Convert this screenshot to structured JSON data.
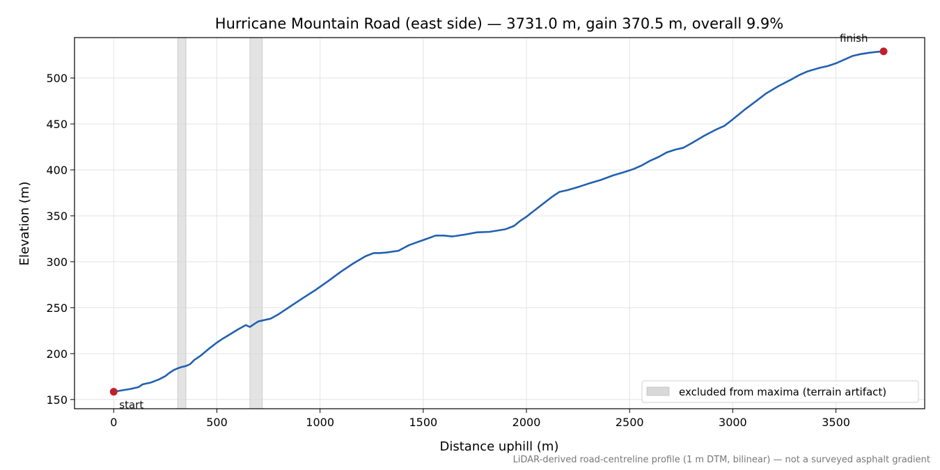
{
  "chart_data": {
    "type": "line",
    "title": "Hurricane Mountain Road (east side) — 3731.0 m, gain 370.5 m, overall 9.9%",
    "xlabel": "Distance uphill (m)",
    "ylabel": "Elevation (m)",
    "xlim": [
      -190,
      3930
    ],
    "ylim": [
      140,
      544
    ],
    "xticks": [
      0,
      500,
      1000,
      1500,
      2000,
      2500,
      3000,
      3500
    ],
    "yticks": [
      150,
      200,
      250,
      300,
      350,
      400,
      450,
      500
    ],
    "grid": true,
    "line_color": "#2160b0",
    "marker_color": "#c0202a",
    "band_color": "#d9d9d9",
    "series": [
      {
        "x": [
          0,
          40,
          80,
          120,
          140,
          180,
          220,
          250,
          270,
          290,
          310,
          330,
          350,
          370,
          390,
          420,
          460,
          500,
          530,
          560,
          600,
          640,
          660,
          680,
          700,
          720,
          760,
          800,
          860,
          920,
          980,
          1040,
          1100,
          1160,
          1220,
          1260,
          1290,
          1320,
          1380,
          1430,
          1480,
          1530,
          1560,
          1600,
          1640,
          1700,
          1760,
          1820,
          1860,
          1900,
          1940,
          1970,
          2000,
          2040,
          2080,
          2120,
          2160,
          2200,
          2260,
          2300,
          2360,
          2420,
          2480,
          2520,
          2560,
          2600,
          2640,
          2680,
          2720,
          2760,
          2800,
          2860,
          2920,
          2960,
          3000,
          3060,
          3120,
          3160,
          3220,
          3280,
          3320,
          3360,
          3420,
          3460,
          3500,
          3540,
          3580,
          3620,
          3660,
          3700,
          3731
        ],
        "y": [
          158.5,
          160,
          161.5,
          163.5,
          166.5,
          168.5,
          172,
          175.5,
          179,
          182,
          184,
          185.5,
          186.5,
          188.5,
          193,
          197.5,
          205,
          212,
          216.5,
          220.5,
          226,
          231,
          229,
          232,
          235,
          236,
          238,
          243,
          252,
          261,
          269.5,
          279,
          289,
          298,
          306,
          309.5,
          309.5,
          310,
          312,
          318,
          322,
          326,
          328.5,
          328.5,
          327.5,
          329.5,
          332,
          332.5,
          334,
          335.5,
          339,
          344.5,
          349,
          356,
          363,
          370,
          376,
          378,
          382,
          385,
          389,
          394,
          398,
          401,
          405,
          410,
          414,
          419,
          422,
          424,
          429,
          437,
          444,
          448,
          455,
          466,
          476,
          483,
          491,
          498,
          503,
          507,
          511,
          513,
          516,
          520,
          524,
          526,
          527.5,
          528.5,
          529
        ]
      }
    ],
    "excluded_bands": [
      [
        310,
        350
      ],
      [
        660,
        720
      ]
    ],
    "start_point": {
      "x": 0,
      "y": 158.5
    },
    "finish_point": {
      "x": 3731,
      "y": 529
    },
    "annotations": {
      "start": "start",
      "finish": "finish"
    },
    "legend": {
      "label": "excluded from maxima (terrain artifact)",
      "placement": "lower-right"
    },
    "caption": "LiDAR-derived road-centreline profile (1 m DTM, bilinear) — not a surveyed asphalt gradient"
  }
}
